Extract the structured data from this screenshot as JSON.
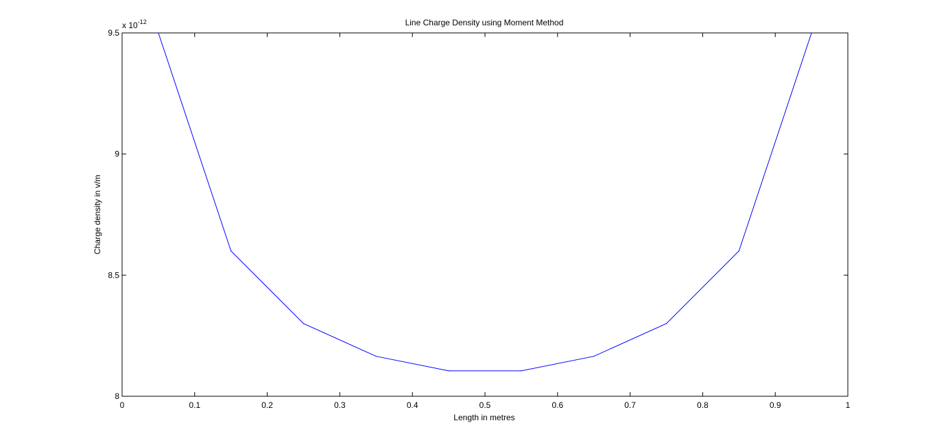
{
  "chart_data": {
    "type": "line",
    "title": "Line Charge Density using Moment Method",
    "xlabel": "Length in metres",
    "ylabel": "Charge density in v/m",
    "y_exponent_label": "x 10",
    "y_exponent_power": "-12",
    "xlim": [
      0,
      1
    ],
    "ylim": [
      8,
      9.5
    ],
    "grid": false,
    "x_ticks": [
      "0",
      "0.1",
      "0.2",
      "0.3",
      "0.4",
      "0.5",
      "0.6",
      "0.7",
      "0.8",
      "0.9",
      "1"
    ],
    "y_ticks": [
      "8",
      "8.5",
      "9",
      "9.5"
    ],
    "line_color": "#0000ff",
    "series": [
      {
        "x": [
          0.05,
          0.15,
          0.25,
          0.35,
          0.45,
          0.55,
          0.65,
          0.75,
          0.85,
          0.95
        ],
        "values": [
          9.5,
          8.6,
          8.3,
          8.165,
          8.105,
          8.105,
          8.165,
          8.3,
          8.6,
          9.5
        ]
      }
    ]
  }
}
